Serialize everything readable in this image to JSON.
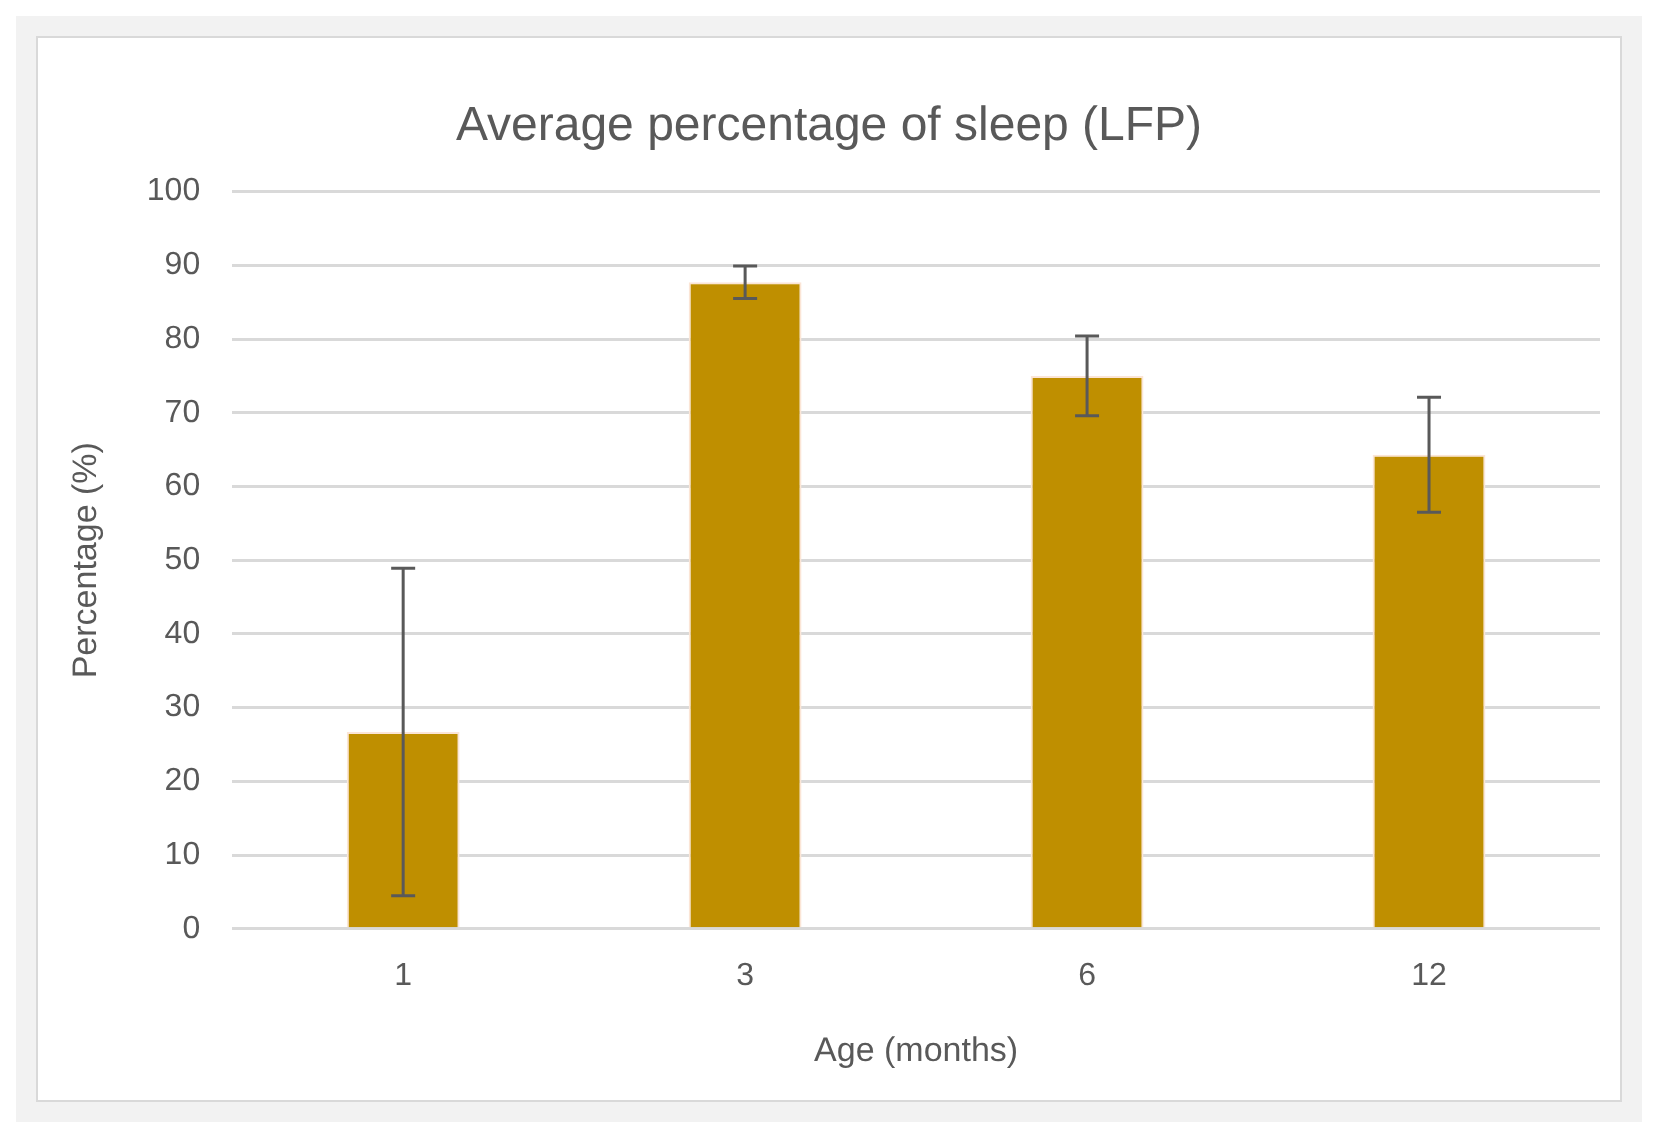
{
  "chart_data": {
    "type": "bar",
    "title": "Average percentage of sleep (LFP)",
    "xlabel": "Age (months)",
    "ylabel": "Percentage (%)",
    "categories": [
      "1",
      "3",
      "6",
      "12"
    ],
    "values": [
      26.7,
      87.7,
      75.0,
      64.3
    ],
    "errors": [
      22.2,
      2.2,
      5.4,
      7.8
    ],
    "color": "#bf8f00",
    "ylim": [
      0,
      100
    ],
    "yticks": [
      0,
      10,
      20,
      30,
      40,
      50,
      60,
      70,
      80,
      90,
      100
    ],
    "grid": "y",
    "legend": false
  }
}
